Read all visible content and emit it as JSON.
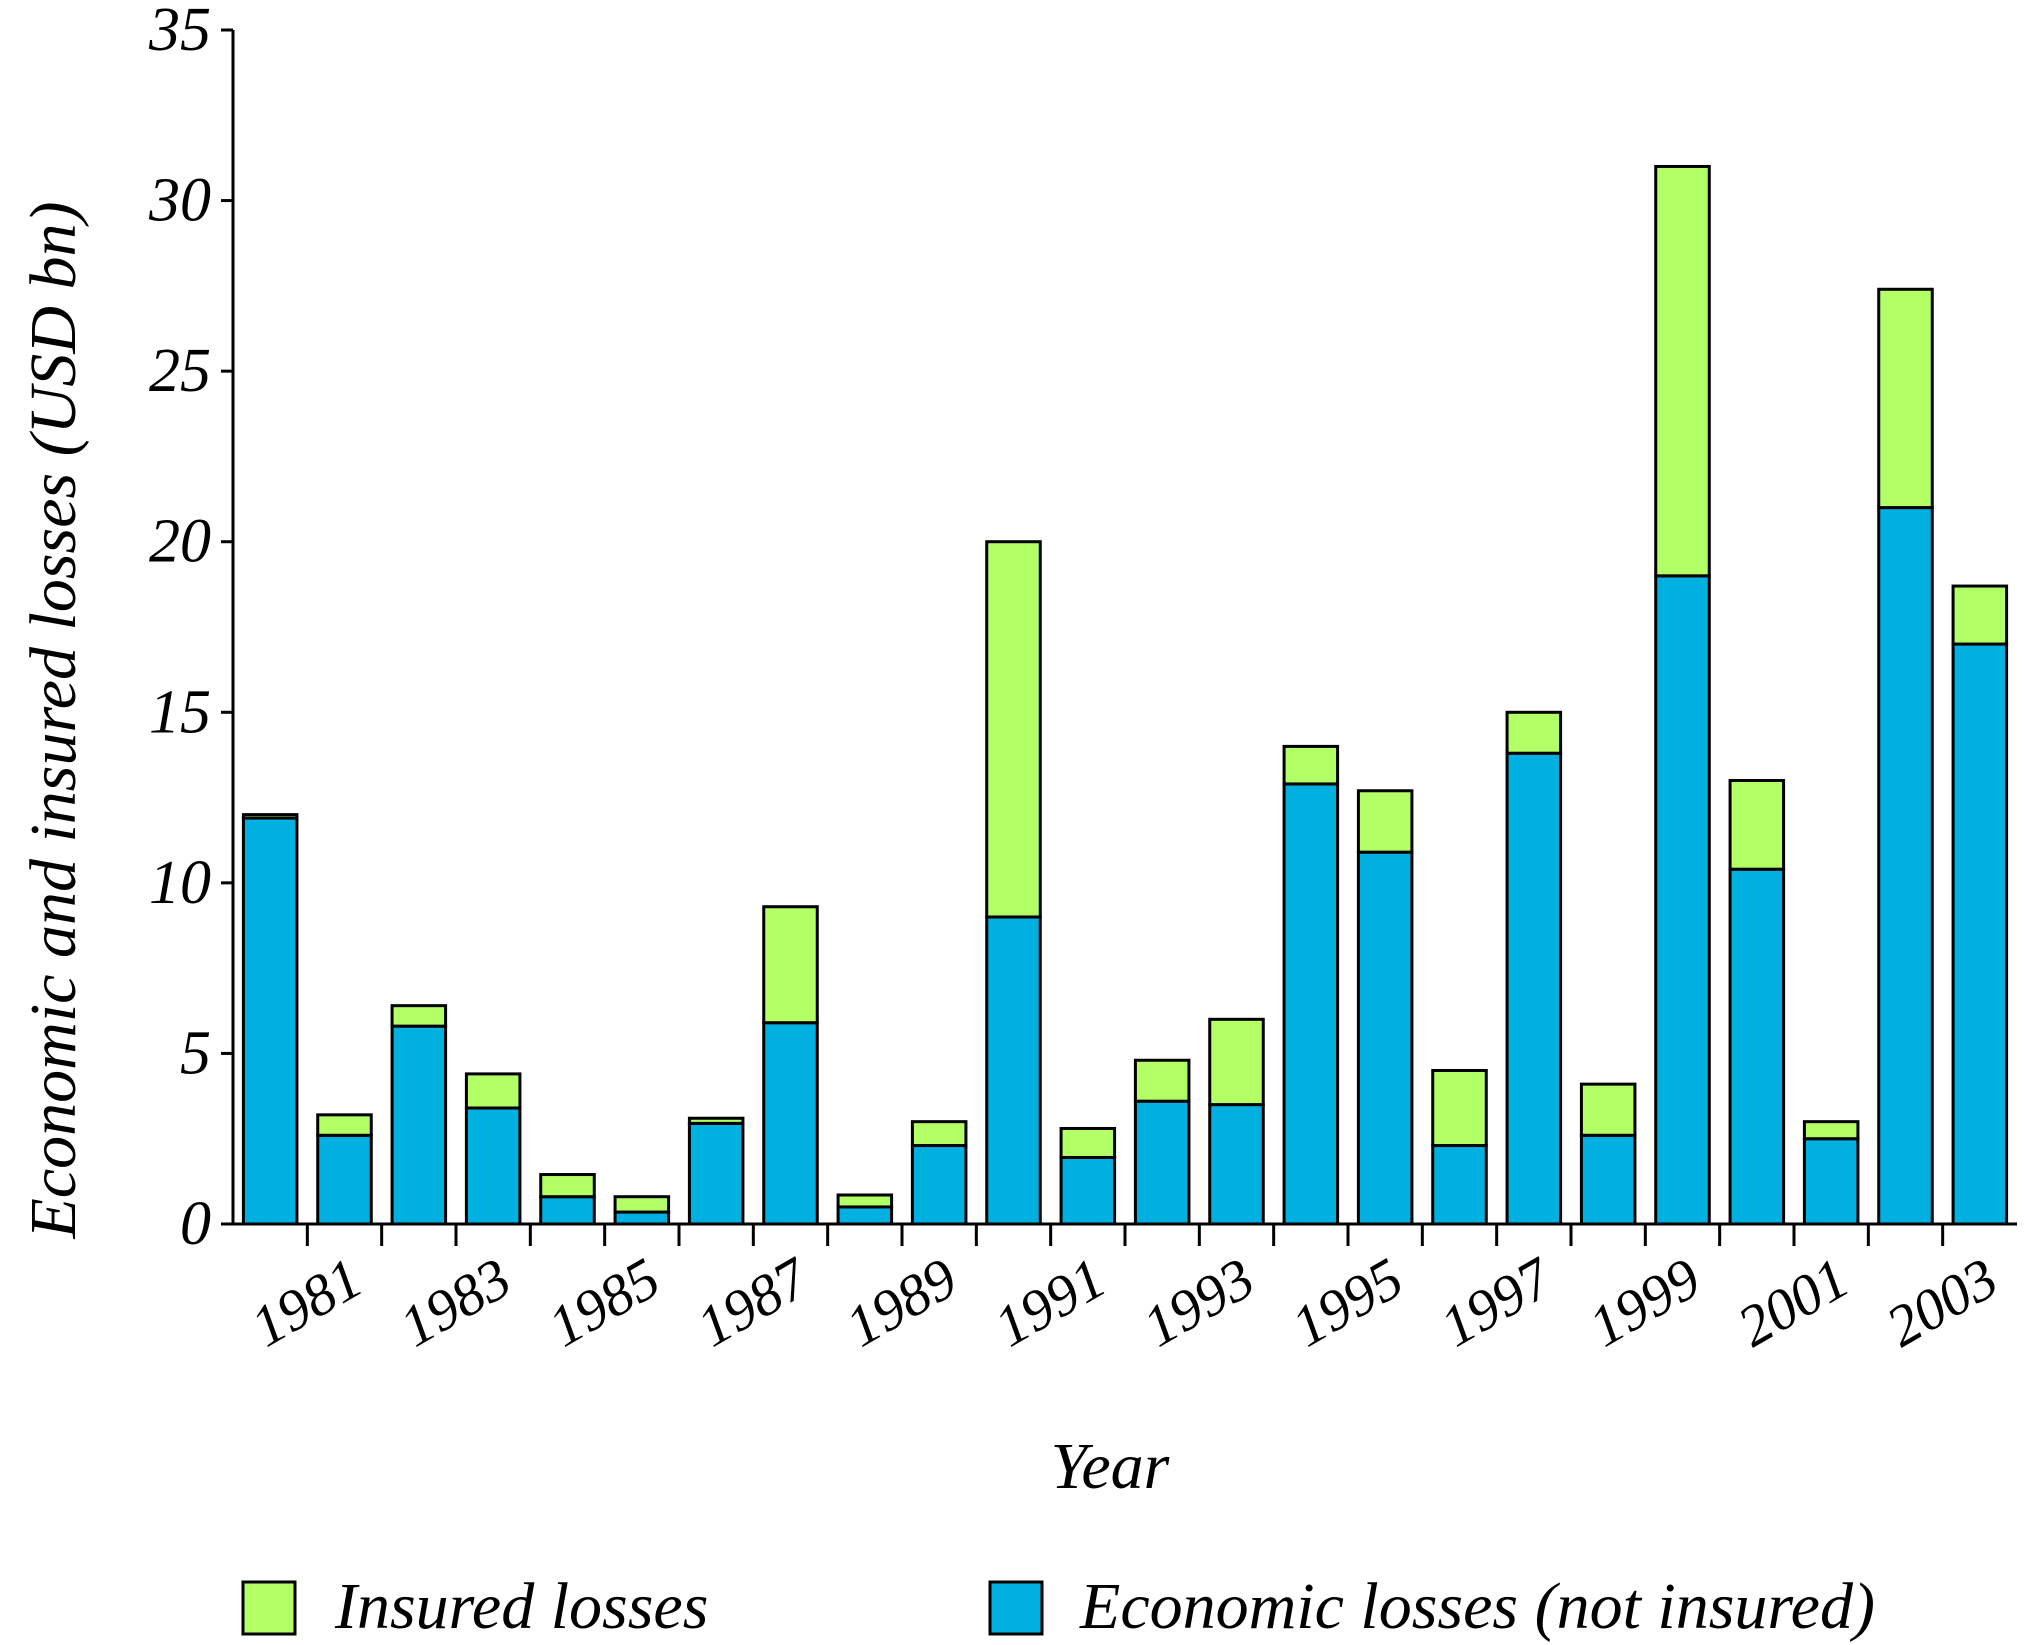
{
  "chart_data": {
    "type": "bar",
    "stacked": true,
    "xlabel": "Year",
    "ylabel": "Economic and insured losses (USD bn)",
    "ylim": [
      0,
      35
    ],
    "yticks": [
      0,
      5,
      10,
      15,
      20,
      25,
      30,
      35
    ],
    "years": [
      1980,
      1981,
      1982,
      1983,
      1984,
      1985,
      1986,
      1987,
      1988,
      1989,
      1990,
      1991,
      1992,
      1993,
      1994,
      1995,
      1996,
      1997,
      1998,
      1999,
      2000,
      2001,
      2002,
      2003
    ],
    "x_tick_labels": [
      "1981",
      "1983",
      "1985",
      "1987",
      "1989",
      "1991",
      "1993",
      "1995",
      "1997",
      "1999",
      "2001",
      "2003"
    ],
    "series": [
      {
        "name": "Economic losses (not insured)",
        "color": "#00b0e0",
        "values": [
          11.9,
          2.6,
          5.8,
          3.4,
          0.8,
          0.35,
          2.95,
          5.9,
          0.5,
          2.3,
          9.0,
          1.95,
          3.6,
          3.5,
          12.9,
          10.9,
          2.3,
          13.8,
          2.6,
          19.0,
          10.4,
          2.5,
          21.0,
          17.0
        ]
      },
      {
        "name": "Insured losses",
        "color": "#b2ff66",
        "values": [
          0.1,
          0.6,
          0.6,
          1.0,
          0.65,
          0.45,
          0.15,
          3.4,
          0.35,
          0.7,
          11.0,
          0.85,
          1.2,
          2.5,
          1.1,
          1.8,
          2.2,
          1.2,
          1.5,
          12.0,
          2.6,
          0.5,
          6.4,
          1.7
        ]
      }
    ],
    "legend": {
      "position": "bottom",
      "entries": [
        "Insured losses",
        "Economic losses (not insured)"
      ]
    },
    "grid": false
  }
}
